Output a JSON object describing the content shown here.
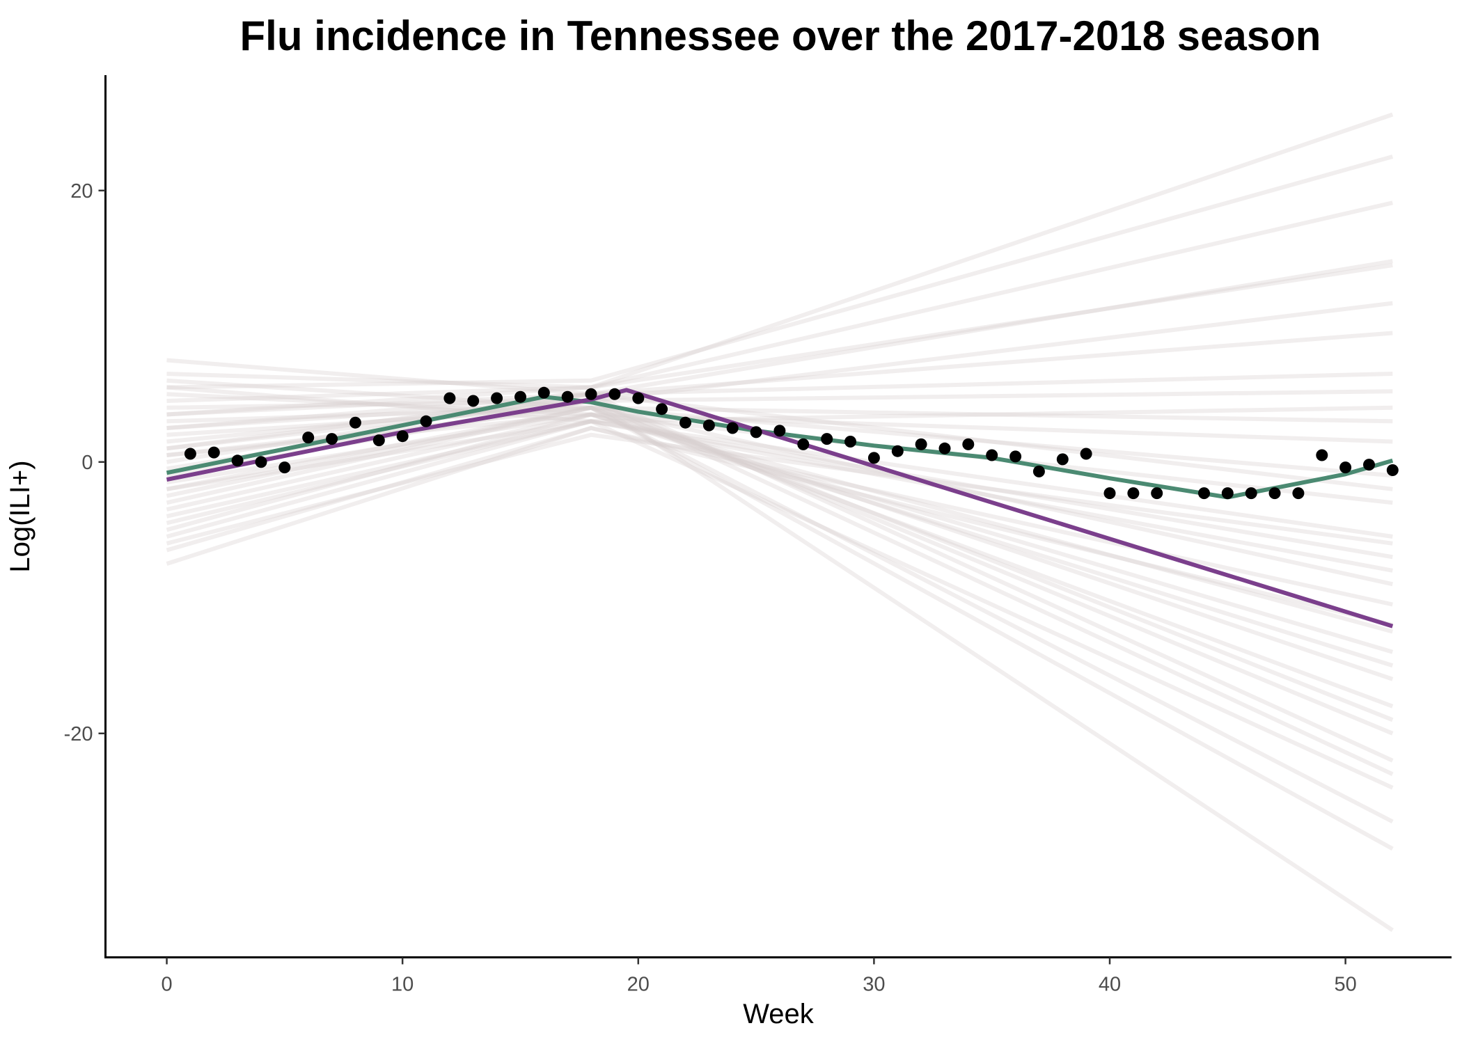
{
  "chart_data": {
    "type": "line",
    "title": "Flu incidence in Tennessee over the 2017-2018 season",
    "xlabel": "Week",
    "ylabel": "Log(ILI+)",
    "xlim": [
      -2.6,
      54.5
    ],
    "ylim": [
      -36.5,
      28.5
    ],
    "x_ticks": [
      0,
      10,
      20,
      30,
      40,
      50
    ],
    "y_ticks": [
      -20,
      0,
      20
    ],
    "x_tick_labels": [
      "0",
      "10",
      "20",
      "30",
      "40",
      "50"
    ],
    "y_tick_labels": [
      "-20",
      "0",
      "20"
    ],
    "grid": false,
    "legend": "none",
    "observed": {
      "x": [
        1,
        2,
        3,
        4,
        5,
        6,
        7,
        8,
        9,
        10,
        11,
        12,
        13,
        14,
        15,
        16,
        17,
        18,
        19,
        20,
        21,
        22,
        23,
        24,
        25,
        26,
        27,
        28,
        29,
        30,
        31,
        32,
        33,
        34,
        35,
        36,
        37,
        38,
        39,
        40,
        41,
        42,
        44,
        45,
        46,
        47,
        48,
        49,
        50,
        51,
        52
      ],
      "y": [
        0.6,
        0.7,
        0.1,
        0.0,
        -0.4,
        1.8,
        1.7,
        2.9,
        1.6,
        1.9,
        3.0,
        4.7,
        4.5,
        4.7,
        4.8,
        5.1,
        4.8,
        5.0,
        5.0,
        4.7,
        3.9,
        2.9,
        2.7,
        2.5,
        2.2,
        2.3,
        1.3,
        1.7,
        1.5,
        0.3,
        0.8,
        1.3,
        1.0,
        1.3,
        0.5,
        0.4,
        -0.7,
        0.2,
        0.6,
        -2.3,
        -2.3,
        -2.3,
        -2.3,
        -2.3,
        -2.3,
        -2.3,
        -2.3,
        0.5,
        -0.4,
        -0.2,
        -0.6
      ]
    },
    "series": [
      {
        "name": "",
        "color": "#4b8a72",
        "x": [
          0,
          16,
          18,
          20,
          25,
          30,
          35,
          40,
          45,
          50,
          52
        ],
        "y": [
          -0.8,
          4.8,
          4.4,
          3.7,
          2.3,
          1.2,
          0.3,
          -1.2,
          -2.6,
          -0.9,
          0.1
        ]
      },
      {
        "name": "",
        "color": "#7b3f8c",
        "x": [
          0,
          10,
          18,
          19.5,
          30,
          52
        ],
        "y": [
          -1.3,
          2.2,
          4.6,
          5.3,
          -0.3,
          -12.1
        ]
      }
    ],
    "sample_lines": {
      "color": "#d8cdcd",
      "x": [
        0,
        18,
        52
      ],
      "y": [
        [
          7.5,
          5.0,
          6.5
        ],
        [
          6.5,
          5.5,
          25.6
        ],
        [
          5.5,
          6.0,
          22.5
        ],
        [
          4.5,
          5.5,
          19.1
        ],
        [
          3.5,
          5.0,
          14.8
        ],
        [
          -0.5,
          4.5,
          11.7
        ],
        [
          2.5,
          5.0,
          9.5
        ],
        [
          1.5,
          4.5,
          5.2
        ],
        [
          0.5,
          4.0,
          3.0
        ],
        [
          -1.5,
          3.5,
          1.5
        ],
        [
          -2.5,
          4.0,
          -1.0
        ],
        [
          -3.5,
          3.5,
          -3.0
        ],
        [
          -4.5,
          3.0,
          -5.5
        ],
        [
          -5.5,
          3.0,
          -8.0
        ],
        [
          -6.5,
          2.5,
          -10.5
        ],
        [
          -7.5,
          2.5,
          -12.0
        ],
        [
          -5.0,
          3.5,
          -14.0
        ],
        [
          -3.0,
          4.0,
          -16.0
        ],
        [
          -2.0,
          4.0,
          -18.0
        ],
        [
          -1.0,
          4.5,
          -20.0
        ],
        [
          0.0,
          5.0,
          -22.0
        ],
        [
          1.0,
          4.5,
          -23.0
        ],
        [
          2.0,
          4.0,
          -26.5
        ],
        [
          3.0,
          4.0,
          -28.5
        ],
        [
          4.0,
          4.5,
          -34.5
        ],
        [
          5.0,
          3.5,
          -12.5
        ],
        [
          6.0,
          4.0,
          -9.0
        ],
        [
          -4.0,
          3.0,
          4.0
        ],
        [
          -6.0,
          2.0,
          -6.0
        ],
        [
          3.5,
          5.5,
          14.5
        ],
        [
          1.0,
          5.0,
          -2.0
        ],
        [
          -2.0,
          3.0,
          -7.0
        ],
        [
          2.5,
          4.5,
          -19.0
        ],
        [
          5.5,
          3.0,
          -24.0
        ],
        [
          0.5,
          3.5,
          -15.0
        ]
      ]
    }
  }
}
